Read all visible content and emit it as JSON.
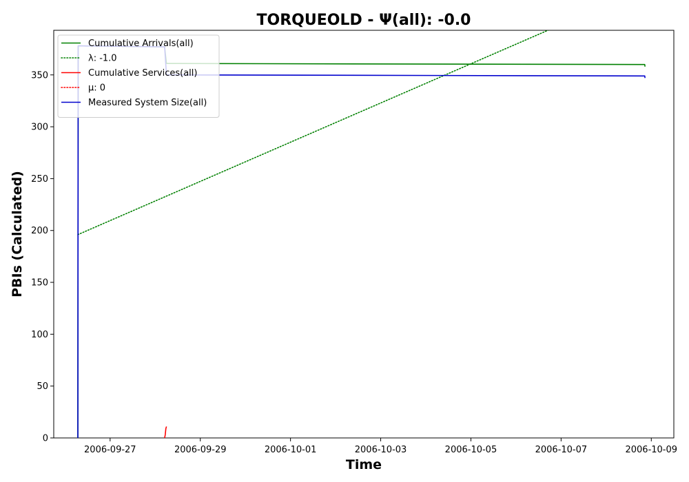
{
  "chart_data": {
    "type": "line",
    "title": "TORQUEOLD -  Ψ(all): -0.0",
    "xlabel": "Time",
    "ylabel": "PBIs (Calculated)",
    "x_type": "date",
    "xlim": [
      "2006-09-25T18:00",
      "2006-10-09T12:00"
    ],
    "ylim": [
      0,
      393
    ],
    "x_ticks": [
      "2006-09-27",
      "2006-09-29",
      "2006-10-01",
      "2006-10-03",
      "2006-10-05",
      "2006-10-07",
      "2006-10-09"
    ],
    "y_ticks": [
      0,
      50,
      100,
      150,
      200,
      250,
      300,
      350
    ],
    "grid": false,
    "legend_position": "top-left",
    "series": [
      {
        "name": "Cumulative Arrivals(all)",
        "color": "#008000",
        "style": "solid",
        "x": [
          "2006-09-26T06:50",
          "2006-09-26T07:00",
          "2006-09-28T05:00",
          "2006-09-28T06:00",
          "2006-10-08T20:30",
          "2006-10-08T20:40"
        ],
        "y": [
          0,
          378,
          377,
          361,
          360,
          358
        ]
      },
      {
        "name": "λ: -1.0",
        "color": "#008000",
        "style": "dotted",
        "x": [
          "2006-09-26T06:50",
          "2006-10-06T17:00"
        ],
        "y": [
          196,
          393
        ]
      },
      {
        "name": "Cumulative Services(all)",
        "color": "#ff0000",
        "style": "solid",
        "x": [
          "2006-09-28T05:00",
          "2006-09-28T05:20",
          "2006-09-28T05:40",
          "2006-09-28T06:00"
        ],
        "y": [
          0,
          3,
          9,
          11
        ]
      },
      {
        "name": "μ: 0",
        "color": "#ff0000",
        "style": "dotted",
        "x": [],
        "y": []
      },
      {
        "name": "Measured System Size(all)",
        "color": "#0000cd",
        "style": "solid",
        "x": [
          "2006-09-26T06:50",
          "2006-09-26T07:00",
          "2006-09-28T05:00",
          "2006-09-28T06:00",
          "2006-10-08T20:30",
          "2006-10-08T20:40"
        ],
        "y": [
          0,
          378,
          377,
          350,
          349,
          347
        ]
      }
    ]
  }
}
